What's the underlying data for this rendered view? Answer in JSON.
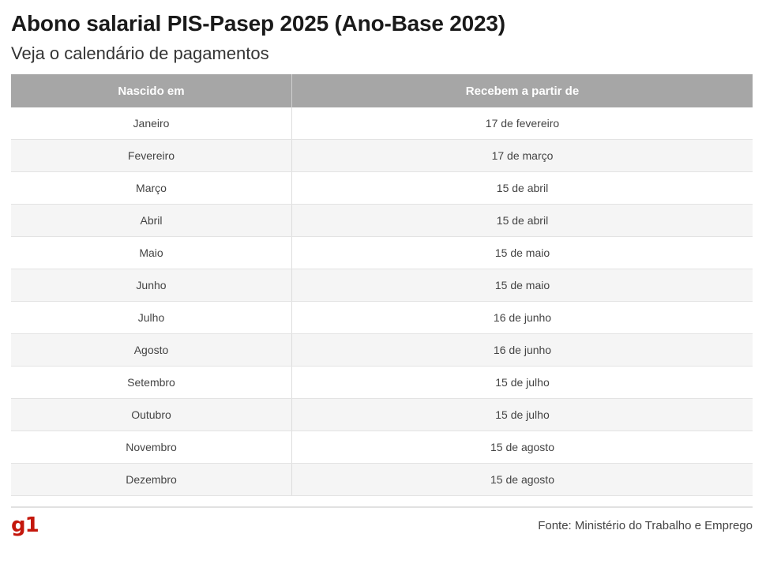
{
  "header": {
    "title": "Abono salarial PIS-Pasep 2025 (Ano-Base 2023)",
    "subtitle": "Veja o calendário de pagamentos"
  },
  "table": {
    "columns": [
      "Nascido em",
      "Recebem a partir de"
    ],
    "rows": [
      [
        "Janeiro",
        "17 de fevereiro"
      ],
      [
        "Fevereiro",
        "17 de março"
      ],
      [
        "Março",
        "15 de abril"
      ],
      [
        "Abril",
        "15 de abril"
      ],
      [
        "Maio",
        "15 de maio"
      ],
      [
        "Junho",
        "15 de maio"
      ],
      [
        "Julho",
        "16 de junho"
      ],
      [
        "Agosto",
        "16 de junho"
      ],
      [
        "Setembro",
        "15 de julho"
      ],
      [
        "Outubro",
        "15 de julho"
      ],
      [
        "Novembro",
        "15 de agosto"
      ],
      [
        "Dezembro",
        "15 de agosto"
      ]
    ]
  },
  "footer": {
    "logo": "g1",
    "source": "Fonte: Ministério do Trabalho e Emprego"
  },
  "colors": {
    "header_bg": "#a6a6a6",
    "brand": "#c4170c"
  }
}
